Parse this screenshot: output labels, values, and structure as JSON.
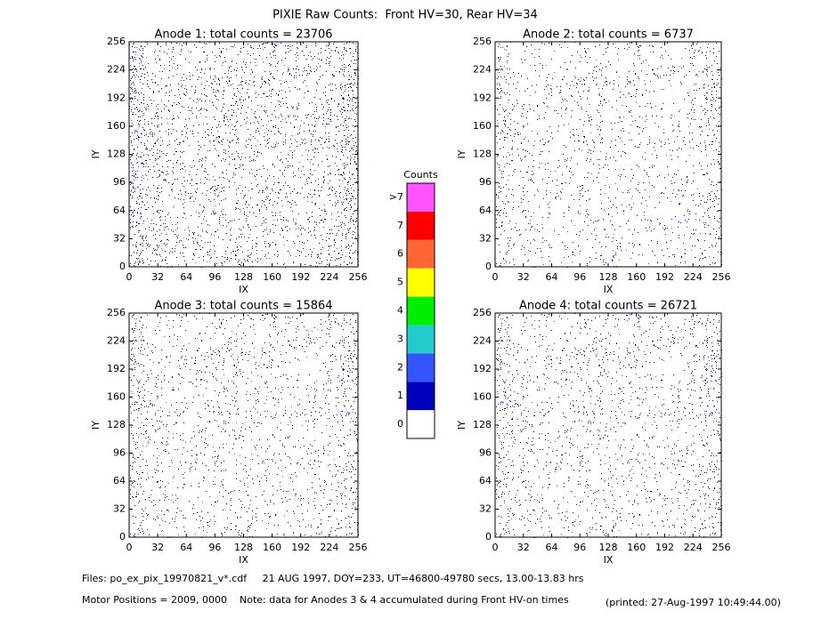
{
  "title": "PIXIE Raw Counts:  Front HV=30, Rear HV=34",
  "chart_data": [
    {
      "type": "heatmap",
      "title": "Anode 1: total counts = 23706",
      "xlabel": "IX",
      "ylabel": "IY",
      "xlim": [
        0,
        256
      ],
      "ylim": [
        0,
        256
      ],
      "xticks": [
        0,
        32,
        64,
        96,
        128,
        160,
        192,
        224,
        256
      ],
      "yticks": [
        0,
        32,
        64,
        96,
        128,
        160,
        192,
        224,
        256
      ]
    },
    {
      "type": "heatmap",
      "title": "Anode 2: total counts = 6737",
      "xlabel": "IX",
      "ylabel": "IY",
      "xlim": [
        0,
        256
      ],
      "ylim": [
        0,
        256
      ],
      "xticks": [
        0,
        32,
        64,
        96,
        128,
        160,
        192,
        224,
        256
      ],
      "yticks": [
        0,
        32,
        64,
        96,
        128,
        160,
        192,
        224,
        256
      ]
    },
    {
      "type": "heatmap",
      "title": "Anode 3: total counts = 15864",
      "xlabel": "IX",
      "ylabel": "IY",
      "xlim": [
        0,
        256
      ],
      "ylim": [
        0,
        256
      ],
      "xticks": [
        0,
        32,
        64,
        96,
        128,
        160,
        192,
        224,
        256
      ],
      "yticks": [
        0,
        32,
        64,
        96,
        128,
        160,
        192,
        224,
        256
      ]
    },
    {
      "type": "heatmap",
      "title": "Anode 4: total counts = 26721",
      "xlabel": "IX",
      "ylabel": "IY",
      "xlim": [
        0,
        256
      ],
      "ylim": [
        0,
        256
      ],
      "xticks": [
        0,
        32,
        64,
        96,
        128,
        160,
        192,
        224,
        256
      ],
      "yticks": [
        0,
        32,
        64,
        96,
        128,
        160,
        192,
        224,
        256
      ]
    }
  ],
  "colorbar": {
    "title": "Counts",
    "labels": [
      "0",
      "1",
      "2",
      "3",
      "4",
      "5",
      "6",
      "7",
      ">7"
    ],
    "colors": [
      "#ffffff",
      "#0000bb",
      "#3355ff",
      "#22cccc",
      "#00ee00",
      "#ffff00",
      "#ff6633",
      "#ff0000",
      "#ff55ff"
    ]
  },
  "footer": [
    "Files: po_ex_pix_19970821_v*.cdf     21 AUG 1997, DOY=233, UT=46800-49780 secs, 13.00-13.83 hrs",
    "Motor Positions = 2009, 0000    Note: data for Anodes 3 & 4 accumulated during Front HV-on times",
    "(printed: 27-Aug-1997 10:49:44.00)"
  ]
}
